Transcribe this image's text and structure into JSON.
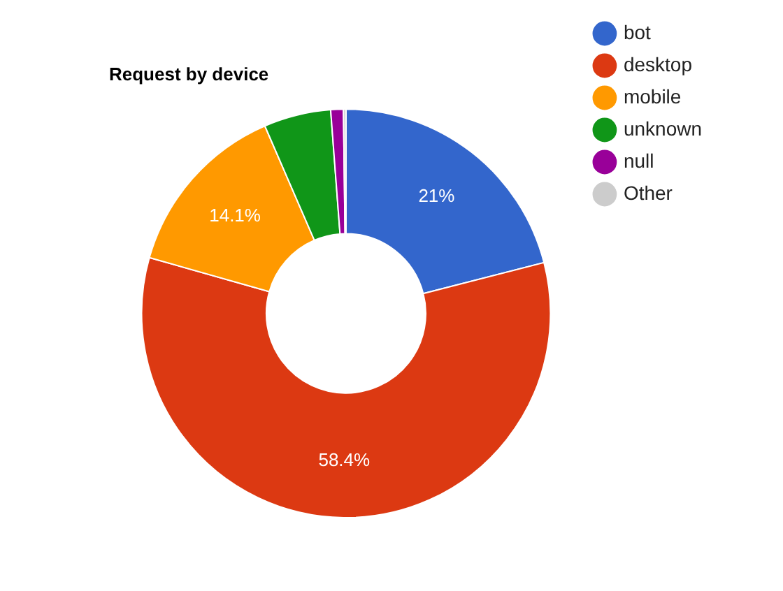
{
  "chart_data": {
    "type": "donut",
    "title": "Request by device",
    "categories": [
      "bot",
      "desktop",
      "mobile",
      "unknown",
      "null",
      "Other"
    ],
    "values": [
      21,
      58.4,
      14.1,
      5.3,
      1.0,
      0.2
    ],
    "colors": [
      "#3366cc",
      "#dc3912",
      "#ff9900",
      "#109618",
      "#990099",
      "#cccccc"
    ],
    "value_labels": [
      "21%",
      "58.4%",
      "14.1%",
      null,
      null,
      null
    ],
    "legend": "right"
  }
}
